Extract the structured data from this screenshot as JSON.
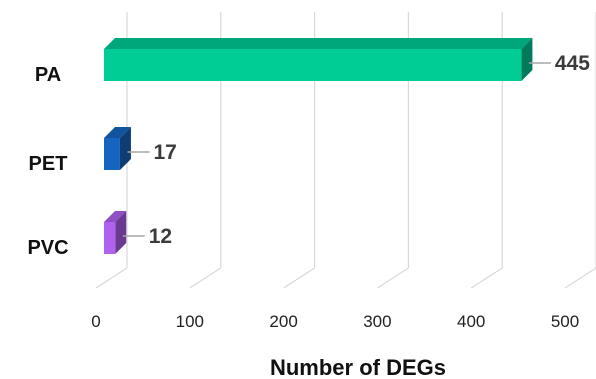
{
  "chart_data": {
    "type": "bar",
    "orientation": "horizontal",
    "style": "3d",
    "categories": [
      "PA",
      "PET",
      "PVC"
    ],
    "values": [
      445,
      17,
      12
    ],
    "data_labels": [
      "445",
      "17",
      "12"
    ],
    "colors": [
      "#00cc96",
      "#1565c0",
      "#b061f0"
    ],
    "xlabel": "Number of DEGs",
    "ylabel": "",
    "title": "",
    "xlim": [
      0,
      500
    ],
    "xticks": [
      0,
      100,
      200,
      300,
      400,
      500
    ],
    "xtick_labels": [
      "0",
      "100",
      "200",
      "300",
      "400",
      "500"
    ],
    "grid": true
  }
}
